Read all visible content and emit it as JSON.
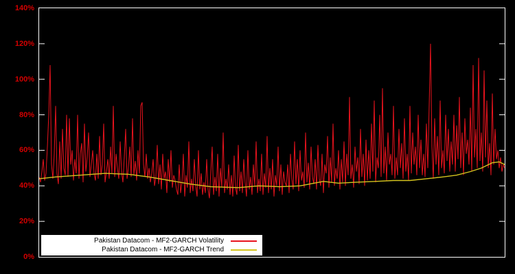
{
  "colors": {
    "background": "#000000",
    "frame": "#ffffff",
    "axis_labels": "#d40000",
    "volatility_series": "#e8131d",
    "trend_series": "#d4c41e"
  },
  "chart_data": {
    "type": "line",
    "title": "",
    "xlabel": "",
    "ylabel": "",
    "grid": false,
    "legend_position": "bottom-left",
    "ylim": [
      0,
      140
    ],
    "y_ticks": [
      0,
      20,
      40,
      60,
      80,
      100,
      120,
      140
    ],
    "y_tick_labels": [
      "0%",
      "20%",
      "40%",
      "60%",
      "80%",
      "100%",
      "120%",
      "140%"
    ],
    "series": [
      {
        "name": "Pakistan Datacom - MF2-GARCH Volatility",
        "color": "#e8131d",
        "values": [
          45,
          42,
          48,
          55,
          43,
          47,
          62,
          80,
          108,
          52,
          44,
          58,
          85,
          47,
          41,
          65,
          44,
          72,
          50,
          46,
          80,
          45,
          78,
          52,
          60,
          43,
          55,
          47,
          80,
          44,
          58,
          64,
          42,
          75,
          48,
          56,
          70,
          45,
          52,
          60,
          47,
          43,
          58,
          44,
          68,
          46,
          52,
          75,
          42,
          48,
          55,
          44,
          62,
          47,
          85,
          45,
          58,
          50,
          44,
          65,
          48,
          42,
          56,
          72,
          44,
          50,
          62,
          45,
          78,
          46,
          54,
          43,
          60,
          47,
          85,
          87,
          52,
          45,
          58,
          44,
          50,
          42,
          47,
          55,
          40,
          45,
          63,
          41,
          52,
          38,
          58,
          44,
          48,
          36,
          55,
          42,
          60,
          39,
          46,
          43,
          38,
          35,
          52,
          36,
          42,
          58,
          34,
          46,
          39,
          65,
          36,
          44,
          37,
          55,
          40,
          34,
          60,
          38,
          47,
          35,
          42,
          36,
          55,
          38,
          33,
          48,
          62,
          35,
          45,
          37,
          58,
          34,
          50,
          39,
          70,
          36,
          44,
          38,
          52,
          35,
          46,
          34,
          57,
          39,
          35,
          63,
          37,
          48,
          36,
          55,
          42,
          34,
          60,
          38,
          45,
          35,
          52,
          40,
          65,
          36,
          44,
          37,
          58,
          35,
          47,
          39,
          68,
          36,
          50,
          38,
          55,
          34,
          46,
          40,
          62,
          37,
          52,
          35,
          48,
          42,
          40,
          52,
          36,
          58,
          44,
          38,
          65,
          41,
          55,
          37,
          60,
          43,
          48,
          39,
          70,
          42,
          53,
          38,
          62,
          45,
          41,
          55,
          38,
          63,
          44,
          40,
          58,
          36,
          52,
          47,
          68,
          39,
          56,
          42,
          75,
          40,
          50,
          44,
          60,
          38,
          55,
          42,
          65,
          40,
          58,
          46,
          90,
          44,
          52,
          39,
          62,
          48,
          56,
          41,
          72,
          45,
          58,
          40,
          66,
          43,
          60,
          44,
          75,
          48,
          88,
          42,
          56,
          50,
          80,
          45,
          95,
          47,
          62,
          43,
          70,
          52,
          58,
          46,
          85,
          44,
          56,
          46,
          72,
          50,
          64,
          44,
          78,
          48,
          58,
          43,
          85,
          47,
          70,
          52,
          62,
          46,
          80,
          50,
          66,
          46,
          58,
          45,
          75,
          50,
          85,
          120,
          62,
          44,
          78,
          52,
          68,
          46,
          88,
          50,
          60,
          47,
          80,
          54,
          72,
          48,
          65,
          52,
          80,
          48,
          74,
          55,
          90,
          50,
          70,
          46,
          78,
          58,
          66,
          52,
          84,
          48,
          108,
          56,
          72,
          50,
          112,
          54,
          70,
          48,
          105,
          56,
          88,
          50,
          64,
          46,
          92,
          52,
          72,
          55,
          60,
          50,
          56,
          48,
          52,
          50
        ]
      },
      {
        "name": "Pakistan Datacom - MF2-GARCH Trend",
        "color": "#d4c41e",
        "points": [
          [
            0,
            44
          ],
          [
            12,
            45
          ],
          [
            30,
            46
          ],
          [
            48,
            47
          ],
          [
            65,
            46.5
          ],
          [
            80,
            45
          ],
          [
            95,
            43
          ],
          [
            110,
            41
          ],
          [
            125,
            39.5
          ],
          [
            145,
            39
          ],
          [
            160,
            40
          ],
          [
            175,
            39.5
          ],
          [
            190,
            40
          ],
          [
            207,
            42.5
          ],
          [
            218,
            41.5
          ],
          [
            230,
            42
          ],
          [
            245,
            42.5
          ],
          [
            258,
            43
          ],
          [
            270,
            43
          ],
          [
            282,
            44
          ],
          [
            294,
            45
          ],
          [
            304,
            46
          ],
          [
            314,
            48
          ],
          [
            322,
            50
          ],
          [
            330,
            53
          ],
          [
            335,
            53.5
          ],
          [
            339,
            52
          ]
        ]
      }
    ]
  },
  "legend": {
    "items": [
      {
        "label": "Pakistan Datacom - MF2-GARCH Volatility"
      },
      {
        "label": "Pakistan Datacom - MF2-GARCH Trend"
      }
    ]
  }
}
